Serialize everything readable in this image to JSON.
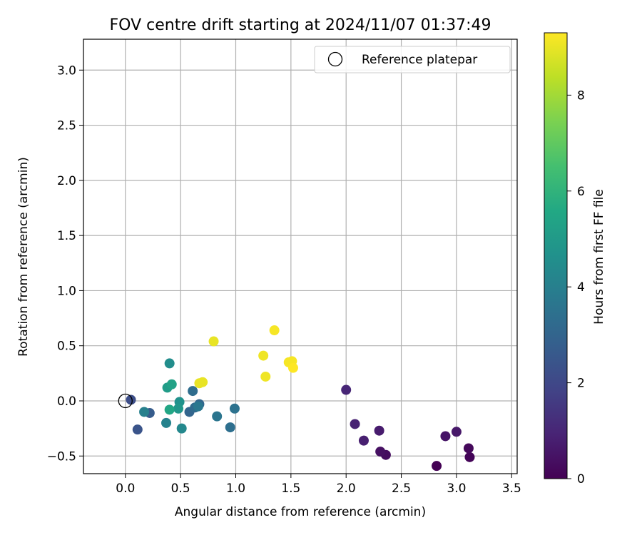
{
  "chart_data": {
    "type": "scatter",
    "title": "FOV centre drift starting at 2024/11/07 01:37:49",
    "xlabel": "Angular distance from reference (arcmin)",
    "ylabel": "Rotation from reference (arcmin)",
    "xlim": [
      -0.38,
      3.55
    ],
    "ylim": [
      -0.66,
      3.28
    ],
    "xticks": [
      0.0,
      0.5,
      1.0,
      1.5,
      2.0,
      2.5,
      3.0,
      3.5
    ],
    "xtick_labels": [
      "0.0",
      "0.5",
      "1.0",
      "1.5",
      "2.0",
      "2.5",
      "3.0",
      "3.5"
    ],
    "yticks": [
      -0.5,
      0.0,
      0.5,
      1.0,
      1.5,
      2.0,
      2.5,
      3.0
    ],
    "ytick_labels": [
      "−0.5",
      "0.0",
      "0.5",
      "1.0",
      "1.5",
      "2.0",
      "2.5",
      "3.0"
    ],
    "grid": true,
    "legend": {
      "position": "top-right",
      "entries": [
        "Reference platepar"
      ]
    },
    "colorbar": {
      "label": "Hours from first FF file",
      "range": [
        0,
        9.3
      ],
      "ticks": [
        0,
        2,
        4,
        6,
        8
      ],
      "tick_labels": [
        "0",
        "2",
        "4",
        "6",
        "8"
      ],
      "colormap": "viridis"
    },
    "reference": {
      "x": 0.0,
      "y": 0.0
    },
    "points": [
      {
        "x": 2.82,
        "y": -0.59,
        "hours": 0.0
      },
      {
        "x": 3.12,
        "y": -0.51,
        "hours": 0.1
      },
      {
        "x": 3.11,
        "y": -0.43,
        "hours": 0.2
      },
      {
        "x": 2.36,
        "y": -0.49,
        "hours": 0.3
      },
      {
        "x": 2.31,
        "y": -0.46,
        "hours": 0.4
      },
      {
        "x": 2.9,
        "y": -0.32,
        "hours": 0.5
      },
      {
        "x": 3.0,
        "y": -0.28,
        "hours": 0.6
      },
      {
        "x": 2.3,
        "y": -0.27,
        "hours": 0.7
      },
      {
        "x": 2.16,
        "y": -0.36,
        "hours": 0.8
      },
      {
        "x": 2.08,
        "y": -0.21,
        "hours": 0.9
      },
      {
        "x": 2.0,
        "y": 0.1,
        "hours": 1.0
      },
      {
        "x": 0.05,
        "y": 0.01,
        "hours": 2.2
      },
      {
        "x": 0.11,
        "y": -0.26,
        "hours": 2.4
      },
      {
        "x": 0.22,
        "y": -0.11,
        "hours": 2.7
      },
      {
        "x": 0.58,
        "y": -0.1,
        "hours": 3.0
      },
      {
        "x": 0.67,
        "y": -0.03,
        "hours": 3.1
      },
      {
        "x": 0.63,
        "y": -0.06,
        "hours": 3.2
      },
      {
        "x": 0.61,
        "y": 0.09,
        "hours": 3.3
      },
      {
        "x": 0.95,
        "y": -0.24,
        "hours": 3.4
      },
      {
        "x": 0.99,
        "y": -0.07,
        "hours": 3.5
      },
      {
        "x": 0.83,
        "y": -0.14,
        "hours": 3.6
      },
      {
        "x": 0.66,
        "y": -0.05,
        "hours": 3.7
      },
      {
        "x": 0.17,
        "y": -0.1,
        "hours": 4.0
      },
      {
        "x": 0.37,
        "y": -0.2,
        "hours": 4.1
      },
      {
        "x": 0.51,
        "y": -0.25,
        "hours": 4.3
      },
      {
        "x": 0.4,
        "y": 0.34,
        "hours": 4.5
      },
      {
        "x": 0.49,
        "y": -0.01,
        "hours": 4.7
      },
      {
        "x": 0.48,
        "y": -0.07,
        "hours": 4.9
      },
      {
        "x": 0.38,
        "y": 0.12,
        "hours": 5.1
      },
      {
        "x": 0.42,
        "y": 0.15,
        "hours": 5.3
      },
      {
        "x": 0.4,
        "y": -0.08,
        "hours": 5.5
      },
      {
        "x": 0.8,
        "y": 0.54,
        "hours": 9.0
      },
      {
        "x": 0.67,
        "y": 0.16,
        "hours": 9.0
      },
      {
        "x": 0.7,
        "y": 0.17,
        "hours": 9.0
      },
      {
        "x": 1.25,
        "y": 0.41,
        "hours": 9.1
      },
      {
        "x": 1.27,
        "y": 0.22,
        "hours": 9.1
      },
      {
        "x": 1.35,
        "y": 0.64,
        "hours": 9.2
      },
      {
        "x": 1.48,
        "y": 0.35,
        "hours": 9.2
      },
      {
        "x": 1.51,
        "y": 0.36,
        "hours": 9.2
      },
      {
        "x": 1.52,
        "y": 0.3,
        "hours": 9.3
      }
    ]
  }
}
